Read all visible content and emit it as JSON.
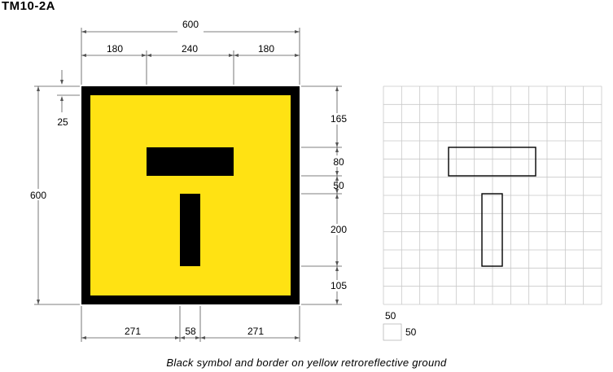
{
  "sign_code": "TM10-2A",
  "caption": "Black symbol and border on yellow retroreflective ground",
  "colors": {
    "ground": "#ffe213",
    "symbol": "#000000",
    "grid": "#c8c8c8",
    "dim_line": "#555555"
  },
  "dimensions": {
    "overall_width": "600",
    "overall_height": "600",
    "top_left": "180",
    "top_middle": "240",
    "top_right": "180",
    "border": "25",
    "right_1": "165",
    "right_2": "80",
    "right_3": "50",
    "right_4": "200",
    "right_5": "105",
    "bottom_left": "271",
    "bottom_middle": "58",
    "bottom_right": "271"
  },
  "grid_legend": {
    "cell_width": "50",
    "cell_height": "50"
  }
}
